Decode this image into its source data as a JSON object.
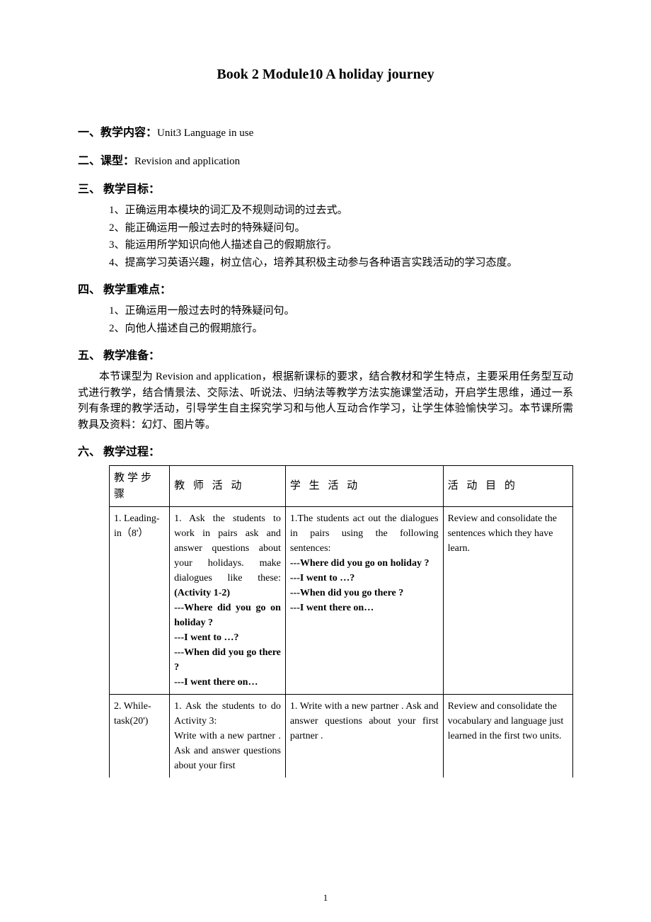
{
  "title": "Book 2 Module10 A holiday journey",
  "sections": {
    "s1": {
      "label": "一、教学内容：",
      "content": "Unit3 Language in use"
    },
    "s2": {
      "label": "二、课型：",
      "content": "Revision and application"
    },
    "s3": {
      "label": "三、 教学目标：",
      "items": [
        "1、正确运用本模块的词汇及不规则动词的过去式。",
        "2、能正确运用一般过去时的特殊疑问句。",
        "3、能运用所学知识向他人描述自己的假期旅行。",
        "4、提高学习英语兴趣，树立信心，培养其积极主动参与各种语言实践活动的学习态度。"
      ]
    },
    "s4": {
      "label": "四、 教学重难点：",
      "items": [
        "1、正确运用一般过去时的特殊疑问句。",
        "2、向他人描述自己的假期旅行。"
      ]
    },
    "s5": {
      "label": "五、 教学准备：",
      "para": "本节课型为 Revision and application，根据新课标的要求，结合教材和学生特点，主要采用任务型互动式进行教学，结合情景法、交际法、听说法、归纳法等教学方法实施课堂活动，开启学生思维，通过一系列有条理的教学活动，引导学生自主探究学习和与他人互动合作学习，让学生体验愉快学习。本节课所需教具及资料：幻灯、图片等。"
    },
    "s6": {
      "label": "六、 教学过程："
    }
  },
  "table": {
    "headers": [
      "教学步骤",
      "教 师 活 动",
      "学 生 活 动",
      "活 动 目 的"
    ],
    "rows": [
      {
        "step": "1. Leading-in（8'）",
        "teacher_pre": "1. Ask the students to work in pairs ask and answer questions about your holidays. make dialogues like these:",
        "teacher_act": "(Activity 1-2)",
        "teacher_dlg": [
          "---Where did you go on holiday ?",
          "---I went to …?",
          "---When did you go there ?",
          "---I went there on…"
        ],
        "student_pre": "1.The students act out the dialogues in pairs using the following sentences:",
        "student_dlg": [
          "---Where did you go on holiday ?",
          "---I went to …?",
          "---When did you go there ?",
          "---I went there on…"
        ],
        "purpose": "Review and consolidate the sentences which they have learn."
      },
      {
        "step": "2. While-task(20')",
        "teacher_pre": "1. Ask the students to do Activity 3:\nWrite with a new partner . Ask and answer questions about your first",
        "student_pre": "1.  Write  with  a  new partner . Ask and answer questions about your first partner .",
        "purpose": "Review and consolidate the vocabulary and language just learned in the first two units."
      }
    ]
  },
  "page_number": "1"
}
